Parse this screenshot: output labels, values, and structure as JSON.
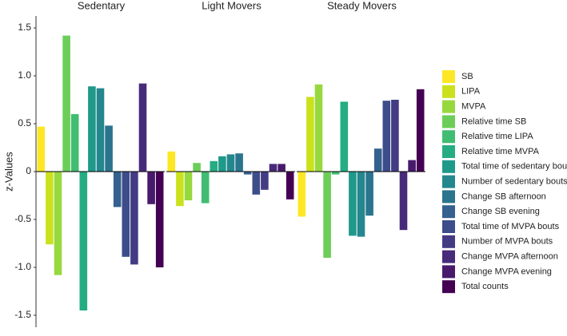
{
  "chart_data": {
    "type": "bar",
    "y_label": "z-Values",
    "categories": [
      "Sedentary",
      "Light Movers",
      "Steady Movers"
    ],
    "series": [
      {
        "name": "SB",
        "color": "#FDE725",
        "values": [
          0.47,
          0.21,
          -0.47
        ]
      },
      {
        "name": "LIPA",
        "color": "#CBE11E",
        "values": [
          -0.76,
          -0.36,
          0.78
        ]
      },
      {
        "name": "MVPA",
        "color": "#97D83F",
        "values": [
          -1.08,
          -0.3,
          0.91
        ]
      },
      {
        "name": "Relative time SB",
        "color": "#6CCE59",
        "values": [
          1.42,
          0.09,
          -0.9
        ]
      },
      {
        "name": "Relative time LIPA",
        "color": "#40BD72",
        "values": [
          0.6,
          -0.33,
          -0.03
        ]
      },
      {
        "name": "Relative time MVPA",
        "color": "#25AC82",
        "values": [
          -1.45,
          0.11,
          0.73
        ]
      },
      {
        "name": "Total time of sedentary bouts",
        "color": "#1F998A",
        "values": [
          0.89,
          0.16,
          -0.67
        ]
      },
      {
        "name": "Number of sedentary bouts",
        "color": "#24878E",
        "values": [
          0.87,
          0.18,
          -0.68
        ]
      },
      {
        "name": "Change SB afternoon",
        "color": "#2B748E",
        "values": [
          0.48,
          0.19,
          -0.46
        ]
      },
      {
        "name": "Change SB evening",
        "color": "#34618D",
        "values": [
          -0.37,
          -0.03,
          0.24
        ]
      },
      {
        "name": "Total time of MVPA bouts",
        "color": "#3D4D8A",
        "values": [
          -0.89,
          -0.24,
          0.74
        ]
      },
      {
        "name": "Number of MVPA bouts",
        "color": "#433C84",
        "values": [
          -0.97,
          -0.19,
          0.75
        ]
      },
      {
        "name": "Change MVPA afternoon",
        "color": "#472B7A",
        "values": [
          0.92,
          0.08,
          -0.61
        ]
      },
      {
        "name": "Change MVPA evening",
        "color": "#481A6C",
        "values": [
          -0.34,
          0.08,
          0.12
        ]
      },
      {
        "name": "Total counts",
        "color": "#440154",
        "values": [
          -1.0,
          -0.29,
          0.86
        ]
      }
    ],
    "ylim": [
      -1.625,
      1.625
    ],
    "yticks": [
      -1.5,
      {
        "value": -1.0,
        "label": "-1.0"
      },
      -0.5,
      0,
      0.5,
      {
        "value": 1.0,
        "label": "1.0"
      },
      1.5
    ]
  }
}
